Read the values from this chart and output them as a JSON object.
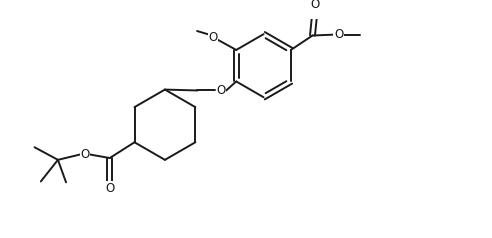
{
  "bg_color": "#ffffff",
  "line_color": "#1a1a1a",
  "line_width": 1.4,
  "fig_width": 4.92,
  "fig_height": 2.38,
  "dpi": 100,
  "font_size": 8.5,
  "xlim": [
    0,
    10
  ],
  "ylim": [
    0,
    4.84
  ]
}
